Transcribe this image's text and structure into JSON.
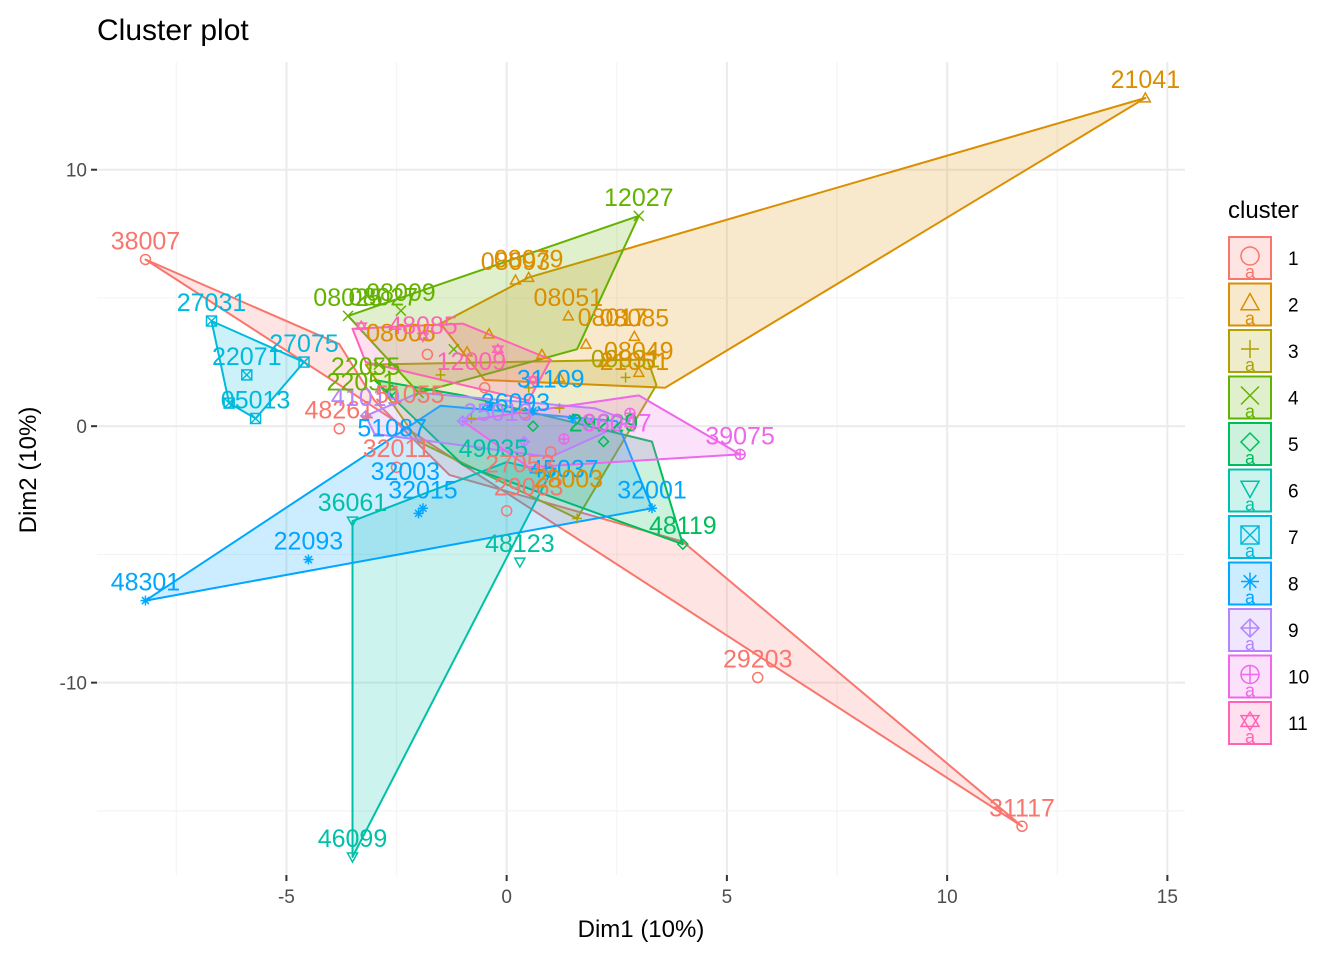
{
  "chart_data": {
    "type": "scatter",
    "title": "Cluster plot",
    "xlabel": "Dim1 (10%)",
    "ylabel": "Dim2 (10%)",
    "xlim": [
      -9.3,
      15.4
    ],
    "ylim": [
      -17.5,
      14.2
    ],
    "xticks": [
      -5,
      0,
      5,
      10,
      15
    ],
    "yticks": [
      -10,
      0,
      10
    ],
    "grid": true,
    "legend": {
      "title": "cluster",
      "position": "right",
      "entries": [
        {
          "label": "1",
          "color": "#F8766D",
          "shape": "circle"
        },
        {
          "label": "2",
          "color": "#DB8E00",
          "shape": "triangle"
        },
        {
          "label": "3",
          "color": "#AEA200",
          "shape": "plus"
        },
        {
          "label": "4",
          "color": "#64B200",
          "shape": "cross"
        },
        {
          "label": "5",
          "color": "#00BD5C",
          "shape": "diamond"
        },
        {
          "label": "6",
          "color": "#00C1A7",
          "shape": "triangle-down"
        },
        {
          "label": "7",
          "color": "#00BADE",
          "shape": "square-cross"
        },
        {
          "label": "8",
          "color": "#00A6FF",
          "shape": "asterisk"
        },
        {
          "label": "9",
          "color": "#B385FF",
          "shape": "diamond-plus"
        },
        {
          "label": "10",
          "color": "#EF67EB",
          "shape": "circle-plus"
        },
        {
          "label": "11",
          "color": "#FF63B6",
          "shape": "star-of-david"
        }
      ]
    },
    "series": [
      {
        "name": "1",
        "hull": [
          [
            -8.2,
            6.5
          ],
          [
            -3.8,
            3.2
          ],
          [
            -3.0,
            1.0
          ],
          [
            -1.3,
            -1.9
          ],
          [
            4.0,
            -4.5
          ],
          [
            11.7,
            -15.6
          ],
          [
            -8.2,
            6.5
          ]
        ],
        "points": [
          {
            "x": -8.2,
            "y": 6.5,
            "label": "38007"
          },
          {
            "x": 5.7,
            "y": -9.8,
            "label": "29203"
          },
          {
            "x": 11.7,
            "y": -15.6,
            "label": "31117"
          },
          {
            "x": -3.8,
            "y": -0.1,
            "label": "48261"
          },
          {
            "x": -2.5,
            "y": -1.6,
            "label": "32011"
          },
          {
            "x": 0.0,
            "y": -3.3,
            "label": ""
          },
          {
            "x": -0.5,
            "y": 1.5,
            "label": ""
          },
          {
            "x": -1.8,
            "y": 2.8,
            "label": ""
          },
          {
            "x": 1.0,
            "y": -1.0,
            "label": ""
          },
          {
            "x": 0.4,
            "y": 0.5,
            "label": ""
          }
        ]
      },
      {
        "name": "2",
        "hull": [
          [
            -1.5,
            4.0
          ],
          [
            0.5,
            5.8
          ],
          [
            14.5,
            12.8
          ],
          [
            3.6,
            1.5
          ],
          [
            -0.5,
            1.8
          ],
          [
            -1.5,
            4.0
          ]
        ],
        "points": [
          {
            "x": 14.5,
            "y": 12.8,
            "label": "21041"
          },
          {
            "x": 0.5,
            "y": 5.8,
            "label": "08079"
          },
          {
            "x": 0.2,
            "y": 5.7,
            "label": "08093"
          },
          {
            "x": 2.9,
            "y": 3.5,
            "label": "08085"
          },
          {
            "x": 1.4,
            "y": 4.3,
            "label": "08051"
          },
          {
            "x": 0.8,
            "y": 2.8,
            "label": ""
          },
          {
            "x": 2.2,
            "y": 2.5,
            "label": ""
          },
          {
            "x": -0.4,
            "y": 3.6,
            "label": ""
          },
          {
            "x": 1.8,
            "y": 3.2,
            "label": ""
          },
          {
            "x": 3.0,
            "y": 2.1,
            "label": ""
          },
          {
            "x": -0.9,
            "y": 2.9,
            "label": ""
          },
          {
            "x": 1.2,
            "y": 1.9,
            "label": ""
          }
        ]
      },
      {
        "name": "3",
        "hull": [
          [
            -3.2,
            2.4
          ],
          [
            3.2,
            2.6
          ],
          [
            3.4,
            1.6
          ],
          [
            1.6,
            -3.6
          ],
          [
            -2.0,
            -0.6
          ],
          [
            -3.2,
            2.4
          ]
        ],
        "points": [
          {
            "x": 1.6,
            "y": -3.6,
            "label": ""
          },
          {
            "x": 2.7,
            "y": 1.9,
            "label": "09031"
          },
          {
            "x": -1.5,
            "y": 2.0,
            "label": ""
          },
          {
            "x": 0.5,
            "y": 1.5,
            "label": ""
          },
          {
            "x": 1.2,
            "y": 0.7,
            "label": ""
          },
          {
            "x": -0.8,
            "y": 0.3,
            "label": ""
          }
        ]
      },
      {
        "name": "4",
        "hull": [
          [
            -3.6,
            4.3
          ],
          [
            3.0,
            8.2
          ],
          [
            1.6,
            3.0
          ],
          [
            -2.0,
            1.3
          ],
          [
            -3.6,
            4.3
          ]
        ],
        "points": [
          {
            "x": 3.0,
            "y": 8.2,
            "label": "12027"
          },
          {
            "x": -3.6,
            "y": 4.3,
            "label": "08025"
          },
          {
            "x": -2.4,
            "y": 4.5,
            "label": "08009"
          },
          {
            "x": -2.9,
            "y": 2.4,
            "label": ""
          },
          {
            "x": -1.2,
            "y": 3.0,
            "label": ""
          },
          {
            "x": -2.0,
            "y": 1.3,
            "label": ""
          }
        ]
      },
      {
        "name": "5",
        "hull": [
          [
            -3.0,
            1.8
          ],
          [
            -1.0,
            1.2
          ],
          [
            3.3,
            -0.6
          ],
          [
            4.0,
            -4.6
          ],
          [
            -1.0,
            -1.5
          ],
          [
            -3.0,
            1.8
          ]
        ],
        "points": [
          {
            "x": 4.0,
            "y": -4.6,
            "label": "48119"
          },
          {
            "x": 2.2,
            "y": -0.6,
            "label": "29229"
          },
          {
            "x": -2.6,
            "y": 1.4,
            "label": ""
          },
          {
            "x": 0.6,
            "y": 0.0,
            "label": ""
          }
        ]
      },
      {
        "name": "6",
        "hull": [
          [
            -3.5,
            -3.7
          ],
          [
            -3.5,
            -16.8
          ],
          [
            1.0,
            -1.8
          ],
          [
            0.0,
            -1.4
          ],
          [
            -3.5,
            -3.7
          ]
        ],
        "points": [
          {
            "x": -3.5,
            "y": -16.8,
            "label": "46099"
          },
          {
            "x": -3.5,
            "y": -3.7,
            "label": "36061"
          },
          {
            "x": 0.3,
            "y": -5.3,
            "label": "48123"
          },
          {
            "x": 1.0,
            "y": -1.8,
            "label": ""
          }
        ]
      },
      {
        "name": "7",
        "hull": [
          [
            -6.7,
            4.1
          ],
          [
            -4.6,
            2.5
          ],
          [
            -5.7,
            0.3
          ],
          [
            -6.3,
            0.9
          ],
          [
            -6.7,
            4.1
          ]
        ],
        "points": [
          {
            "x": -6.7,
            "y": 4.1,
            "label": "27031"
          },
          {
            "x": -4.6,
            "y": 2.5,
            "label": "27075"
          },
          {
            "x": -5.9,
            "y": 2.0,
            "label": "22071"
          },
          {
            "x": -5.7,
            "y": 0.3,
            "label": "05013"
          },
          {
            "x": -6.3,
            "y": 0.9,
            "label": ""
          }
        ]
      },
      {
        "name": "8",
        "hull": [
          [
            -8.2,
            -6.8
          ],
          [
            -1.5,
            0.8
          ],
          [
            2.5,
            0.2
          ],
          [
            3.3,
            -3.2
          ],
          [
            -8.2,
            -6.8
          ]
        ],
        "points": [
          {
            "x": -8.2,
            "y": -6.8,
            "label": "48301"
          },
          {
            "x": -4.5,
            "y": -5.2,
            "label": "22093"
          },
          {
            "x": -1.9,
            "y": -3.2,
            "label": "32015"
          },
          {
            "x": -2.0,
            "y": -3.4,
            "label": ""
          },
          {
            "x": 3.3,
            "y": -3.2,
            "label": "32001"
          },
          {
            "x": -0.4,
            "y": 0.8,
            "label": ""
          },
          {
            "x": 0.6,
            "y": 0.6,
            "label": ""
          },
          {
            "x": 1.5,
            "y": 0.3,
            "label": ""
          }
        ]
      },
      {
        "name": "9",
        "hull": [
          [
            -3.2,
            0.4
          ],
          [
            -2.0,
            1.3
          ],
          [
            2.0,
            0.7
          ],
          [
            2.8,
            0.2
          ],
          [
            1.0,
            -1.2
          ],
          [
            -3.0,
            -0.3
          ],
          [
            -3.2,
            0.4
          ]
        ],
        "points": [
          {
            "x": -3.2,
            "y": 0.4,
            "label": "41019"
          },
          {
            "x": -1.0,
            "y": 0.2,
            "label": ""
          },
          {
            "x": 1.8,
            "y": 0.2,
            "label": ""
          },
          {
            "x": 0.4,
            "y": -0.6,
            "label": ""
          }
        ]
      },
      {
        "name": "10",
        "hull": [
          [
            -1.0,
            0.2
          ],
          [
            3.0,
            1.2
          ],
          [
            5.3,
            -1.1
          ],
          [
            0.5,
            -1.6
          ],
          [
            -1.0,
            0.2
          ]
        ],
        "points": [
          {
            "x": 5.3,
            "y": -1.1,
            "label": "39075"
          },
          {
            "x": 2.8,
            "y": 0.5,
            "label": ""
          },
          {
            "x": 1.3,
            "y": -0.5,
            "label": ""
          }
        ]
      },
      {
        "name": "11",
        "hull": [
          [
            -3.5,
            3.8
          ],
          [
            -1.0,
            4.0
          ],
          [
            1.0,
            2.6
          ],
          [
            0.5,
            1.0
          ],
          [
            -3.2,
            2.5
          ],
          [
            -3.5,
            3.8
          ]
        ],
        "points": [
          {
            "x": -3.3,
            "y": 3.9,
            "label": ""
          },
          {
            "x": -1.9,
            "y": 3.5,
            "label": ""
          },
          {
            "x": -0.2,
            "y": 3.0,
            "label": ""
          },
          {
            "x": 0.6,
            "y": 1.8,
            "label": ""
          }
        ]
      }
    ],
    "annotations": [
      {
        "text": "08005",
        "x": -2.4,
        "y": 3.3,
        "series": "2"
      },
      {
        "text": "08017",
        "x": 2.4,
        "y": 3.9,
        "series": "2"
      },
      {
        "text": "08049",
        "x": 3.0,
        "y": 2.6,
        "series": "2"
      },
      {
        "text": "21051",
        "x": 2.9,
        "y": 2.2,
        "series": "2"
      },
      {
        "text": "08027",
        "x": -2.8,
        "y": 4.7,
        "series": "4"
      },
      {
        "text": "22055",
        "x": -3.2,
        "y": 2.0,
        "series": "4"
      },
      {
        "text": "22051",
        "x": -3.3,
        "y": 1.4,
        "series": "4"
      },
      {
        "text": "51055",
        "x": -2.2,
        "y": 0.9,
        "series": "1"
      },
      {
        "text": "49035",
        "x": -0.3,
        "y": -1.2,
        "series": "6"
      },
      {
        "text": "45037",
        "x": 1.3,
        "y": -2.0,
        "series": "8"
      },
      {
        "text": "29063",
        "x": 0.5,
        "y": -2.7,
        "series": "1"
      },
      {
        "text": "28003",
        "x": 1.4,
        "y": -2.4,
        "series": "2"
      },
      {
        "text": "32003",
        "x": -2.3,
        "y": -2.1,
        "series": "8"
      },
      {
        "text": "51087",
        "x": -2.6,
        "y": -0.4,
        "series": "8"
      },
      {
        "text": "36047",
        "x": 2.5,
        "y": -0.2,
        "series": "10"
      },
      {
        "text": "27053",
        "x": 0.3,
        "y": -1.8,
        "series": "1"
      },
      {
        "text": "36093",
        "x": 0.2,
        "y": 0.6,
        "series": "8"
      },
      {
        "text": "31109",
        "x": 1.0,
        "y": 1.5,
        "series": "8"
      },
      {
        "text": "25013",
        "x": -0.2,
        "y": 0.2,
        "series": "9"
      },
      {
        "text": "48085",
        "x": -1.9,
        "y": 3.6,
        "series": "11"
      },
      {
        "text": "12009",
        "x": -0.8,
        "y": 2.2,
        "series": "11"
      }
    ]
  }
}
